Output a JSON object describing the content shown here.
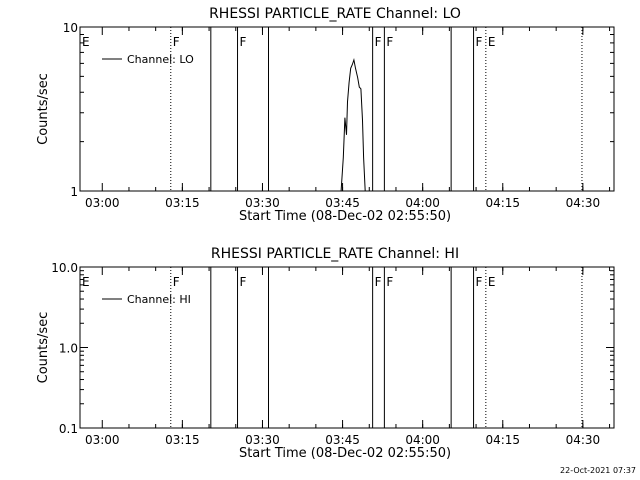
{
  "timestamp": "22-Oct-2021 07:37",
  "chart_data": [
    {
      "type": "line",
      "title": "RHESSI PARTICLE_RATE Channel: LO",
      "xlabel": "Start Time (08-Dec-02 02:55:50)",
      "ylabel": "Counts/sec",
      "x_unit": "minutes since 02:55:50",
      "xlim": [
        0,
        100
      ],
      "ylim": [
        1,
        10
      ],
      "yscale": "log",
      "xticks": [
        4.17,
        19.17,
        34.17,
        49.17,
        64.17,
        79.17,
        94.17
      ],
      "xtick_labels": [
        "03:00",
        "03:15",
        "03:30",
        "03:45",
        "04:00",
        "04:15",
        "04:30"
      ],
      "yticks": [
        1,
        10
      ],
      "ytick_labels": [
        "1",
        "10"
      ],
      "legend": {
        "label": "Channel: LO",
        "placement": "top-left"
      },
      "markers": [
        {
          "x": 0,
          "label": "E",
          "style": "none"
        },
        {
          "x": 17.0,
          "label": "F",
          "style": "dotted"
        },
        {
          "x": 24.5,
          "label": "",
          "style": "solid"
        },
        {
          "x": 29.5,
          "label": "F",
          "style": "solid"
        },
        {
          "x": 35.3,
          "label": "",
          "style": "solid"
        },
        {
          "x": 54.8,
          "label": "F",
          "style": "solid"
        },
        {
          "x": 57.0,
          "label": "F",
          "style": "solid"
        },
        {
          "x": 69.5,
          "label": "",
          "style": "solid"
        },
        {
          "x": 73.7,
          "label": "F",
          "style": "solid"
        },
        {
          "x": 76.0,
          "label": "E",
          "style": "dotted"
        },
        {
          "x": 94.0,
          "label": "",
          "style": "dotted"
        }
      ],
      "series": [
        {
          "name": "Channel: LO",
          "x": [
            48.9,
            49.3,
            49.6,
            49.9,
            50.1,
            50.4,
            50.7,
            51.0,
            51.3,
            51.6,
            52.0,
            52.3,
            52.6,
            52.9,
            53.1,
            53.4
          ],
          "y": [
            1.0,
            1.6,
            2.8,
            2.2,
            3.5,
            4.6,
            5.6,
            5.9,
            6.3,
            5.6,
            4.9,
            4.3,
            4.2,
            2.7,
            1.6,
            1.0
          ]
        }
      ]
    },
    {
      "type": "line",
      "title": "RHESSI PARTICLE_RATE Channel: HI",
      "xlabel": "Start Time (08-Dec-02 02:55:50)",
      "ylabel": "Counts/sec",
      "x_unit": "minutes since 02:55:50",
      "xlim": [
        0,
        100
      ],
      "ylim": [
        0.1,
        10
      ],
      "yscale": "log",
      "xticks": [
        4.17,
        19.17,
        34.17,
        49.17,
        64.17,
        79.17,
        94.17
      ],
      "xtick_labels": [
        "03:00",
        "03:15",
        "03:30",
        "03:45",
        "04:00",
        "04:15",
        "04:30"
      ],
      "yticks": [
        0.1,
        1,
        10
      ],
      "ytick_labels": [
        "0.1",
        "1.0",
        "10.0"
      ],
      "legend": {
        "label": "Channel: HI",
        "placement": "top-left"
      },
      "markers": [
        {
          "x": 0,
          "label": "E",
          "style": "none"
        },
        {
          "x": 17.0,
          "label": "F",
          "style": "dotted"
        },
        {
          "x": 24.5,
          "label": "",
          "style": "solid"
        },
        {
          "x": 29.5,
          "label": "F",
          "style": "solid"
        },
        {
          "x": 35.3,
          "label": "",
          "style": "solid"
        },
        {
          "x": 54.8,
          "label": "F",
          "style": "solid"
        },
        {
          "x": 57.0,
          "label": "F",
          "style": "solid"
        },
        {
          "x": 69.5,
          "label": "",
          "style": "solid"
        },
        {
          "x": 73.7,
          "label": "F",
          "style": "solid"
        },
        {
          "x": 76.0,
          "label": "E",
          "style": "dotted"
        },
        {
          "x": 94.0,
          "label": "",
          "style": "dotted"
        }
      ],
      "series": [
        {
          "name": "Channel: HI",
          "x": [],
          "y": []
        }
      ]
    }
  ]
}
